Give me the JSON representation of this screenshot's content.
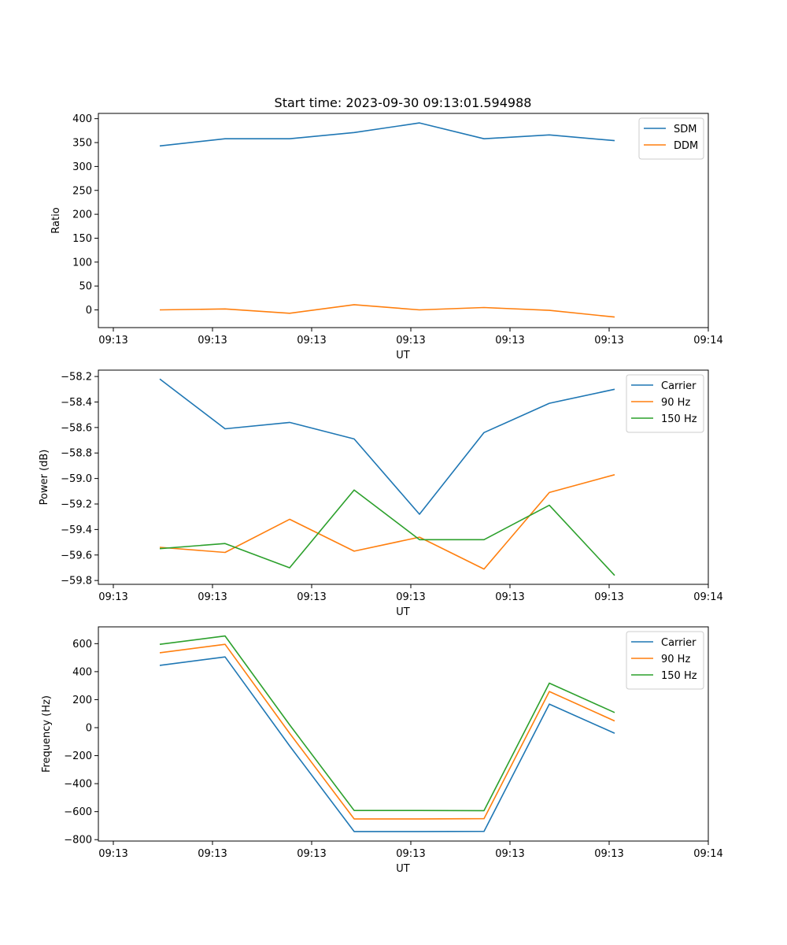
{
  "chart_data": [
    {
      "type": "line",
      "title": "Start time: 2023-09-30 09:13:01.594988",
      "xlabel": "UT",
      "ylabel": "Ratio",
      "x_tick_labels": [
        "09:13",
        "09:13",
        "09:13",
        "09:13",
        "09:13",
        "09:13",
        "09:14"
      ],
      "ylim": [
        -37,
        411
      ],
      "y_ticks": [
        0,
        50,
        100,
        150,
        200,
        250,
        300,
        350,
        400
      ],
      "legend_position": "top-right",
      "series": [
        {
          "name": "SDM",
          "color": "#1f77b4",
          "values": [
            343,
            358,
            358,
            371,
            391,
            358,
            366,
            354
          ]
        },
        {
          "name": "DDM",
          "color": "#ff7f0e",
          "values": [
            0,
            2,
            -7,
            11,
            0,
            5,
            -1,
            -15
          ]
        }
      ]
    },
    {
      "type": "line",
      "title": "",
      "xlabel": "UT",
      "ylabel": "Power (dB)",
      "x_tick_labels": [
        "09:13",
        "09:13",
        "09:13",
        "09:13",
        "09:13",
        "09:13",
        "09:14"
      ],
      "ylim": [
        -59.83,
        -58.15
      ],
      "y_ticks": [
        -58.2,
        -58.4,
        -58.6,
        -58.8,
        -59.0,
        -59.2,
        -59.4,
        -59.6,
        -59.8
      ],
      "y_tick_labels": [
        "−58.2",
        "−58.4",
        "−58.6",
        "−58.8",
        "−59.0",
        "−59.2",
        "−59.4",
        "−59.6",
        "−59.8"
      ],
      "legend_position": "top-right",
      "series": [
        {
          "name": "Carrier",
          "color": "#1f77b4",
          "values": [
            -58.22,
            -58.61,
            -58.56,
            -58.69,
            -59.28,
            -58.64,
            -58.41,
            -58.3
          ]
        },
        {
          "name": "90 Hz",
          "color": "#ff7f0e",
          "values": [
            -59.54,
            -59.58,
            -59.32,
            -59.57,
            -59.46,
            -59.71,
            -59.11,
            -58.97
          ]
        },
        {
          "name": "150 Hz",
          "color": "#2ca02c",
          "values": [
            -59.55,
            -59.51,
            -59.7,
            -59.09,
            -59.48,
            -59.48,
            -59.21,
            -59.76
          ]
        }
      ]
    },
    {
      "type": "line",
      "title": "",
      "xlabel": "UT",
      "ylabel": "Frequency (Hz)",
      "x_tick_labels": [
        "09:13",
        "09:13",
        "09:13",
        "09:13",
        "09:13",
        "09:13",
        "09:14"
      ],
      "ylim": [
        -810,
        720
      ],
      "y_ticks": [
        600,
        400,
        200,
        0,
        -200,
        -400,
        -600,
        -800
      ],
      "y_tick_labels": [
        "600",
        "400",
        "200",
        "0",
        "−200",
        "−400",
        "−600",
        "−800"
      ],
      "legend_position": "top-right",
      "series": [
        {
          "name": "Carrier",
          "color": "#1f77b4",
          "values": [
            445,
            505,
            -130,
            -742,
            -742,
            -741,
            168,
            -40
          ]
        },
        {
          "name": "90 Hz",
          "color": "#ff7f0e",
          "values": [
            535,
            595,
            -40,
            -652,
            -652,
            -650,
            258,
            48
          ]
        },
        {
          "name": "150 Hz",
          "color": "#2ca02c",
          "values": [
            595,
            655,
            20,
            -592,
            -592,
            -593,
            318,
            108
          ]
        }
      ]
    }
  ]
}
